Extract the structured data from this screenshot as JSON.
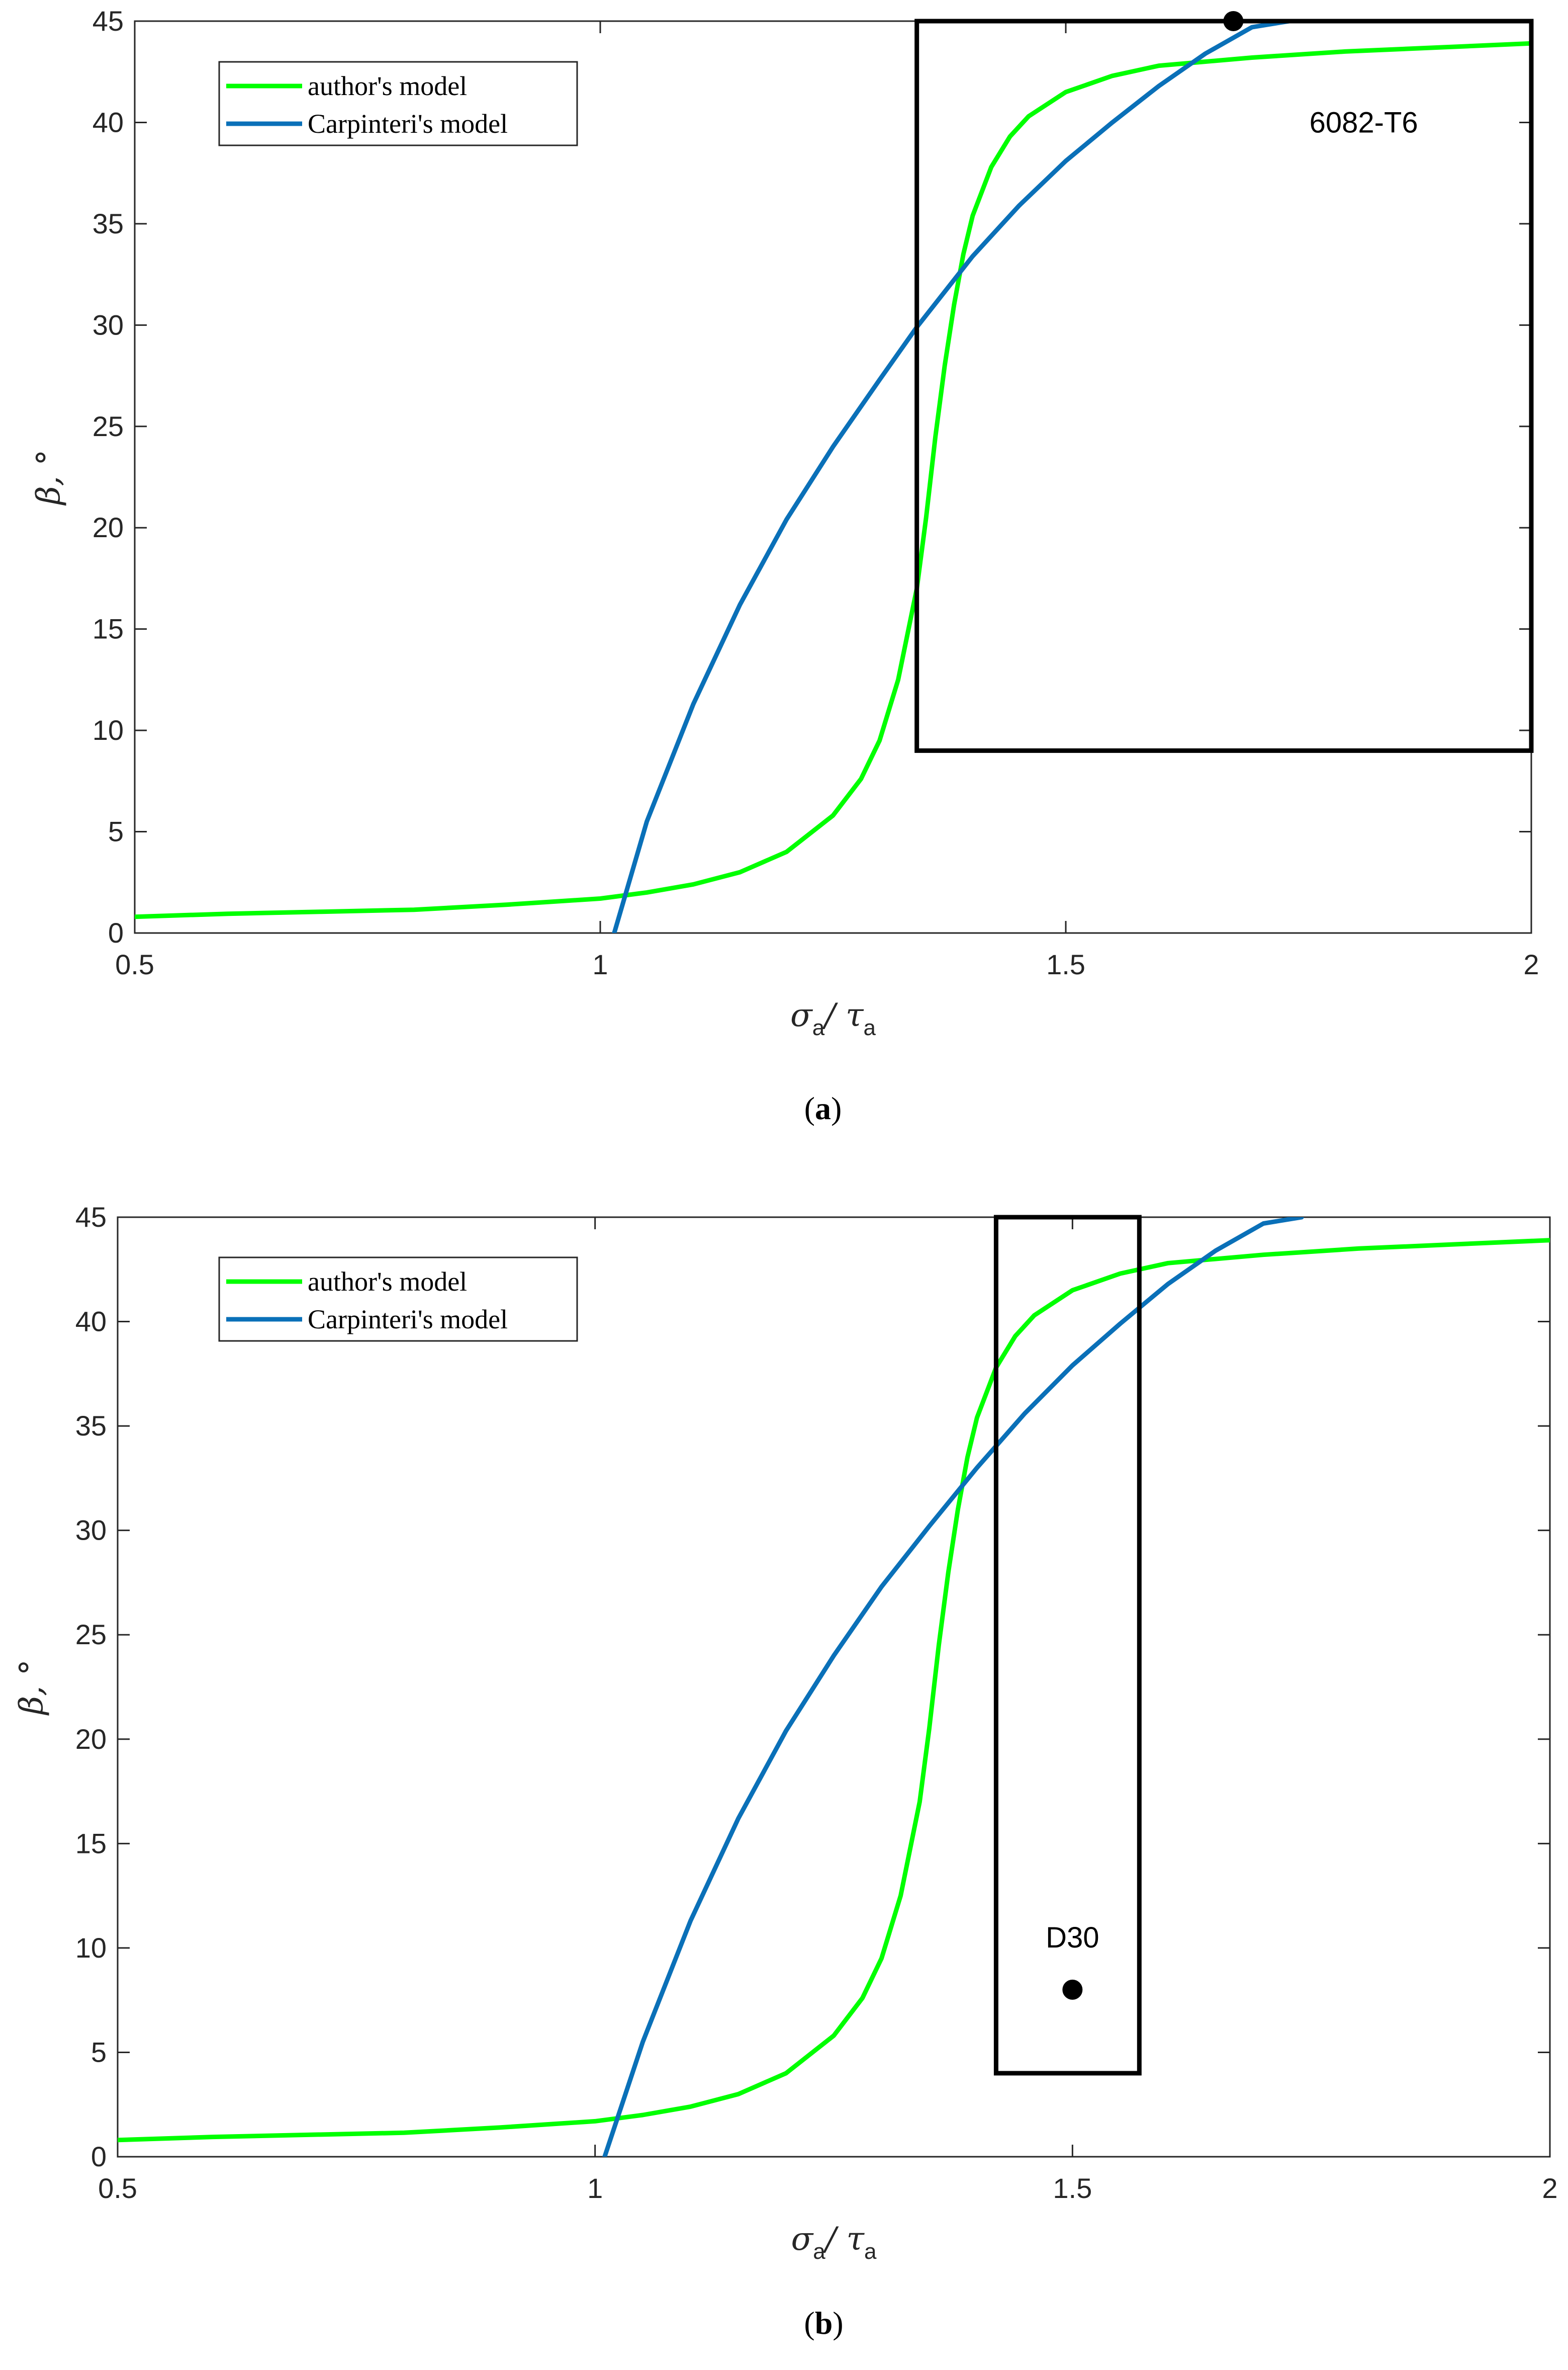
{
  "chart_data": [
    {
      "type": "line",
      "panel": "a",
      "caption_label": "a",
      "xlabel": {
        "main": "σ",
        "sub1": "a",
        "sep": "/ ",
        "main2": "τ",
        "sub2": "a"
      },
      "ylabel": "β, °",
      "xlim": [
        0.5,
        2
      ],
      "ylim": [
        0,
        45
      ],
      "xticks": [
        0.5,
        1,
        1.5,
        2
      ],
      "xtick_labels": [
        "0.5",
        "1",
        "1.5",
        "2"
      ],
      "yticks": [
        0,
        5,
        10,
        15,
        20,
        25,
        30,
        35,
        40,
        45
      ],
      "ytick_labels": [
        "0",
        "5",
        "10",
        "15",
        "20",
        "25",
        "30",
        "35",
        "40",
        "45"
      ],
      "legend_position": "top-left",
      "series": [
        {
          "name": "author's model",
          "color": "#00ff00",
          "x": [
            0.5,
            0.6,
            0.7,
            0.8,
            0.9,
            1.0,
            1.05,
            1.1,
            1.15,
            1.2,
            1.25,
            1.28,
            1.3,
            1.32,
            1.34,
            1.35,
            1.36,
            1.37,
            1.38,
            1.39,
            1.4,
            1.42,
            1.44,
            1.46,
            1.5,
            1.55,
            1.6,
            1.7,
            1.8,
            1.9,
            2.0
          ],
          "y": [
            0.8,
            0.95,
            1.05,
            1.15,
            1.4,
            1.7,
            2.0,
            2.4,
            3.0,
            4.0,
            5.8,
            7.6,
            9.5,
            12.5,
            17.0,
            20.5,
            24.5,
            28.0,
            31.0,
            33.5,
            35.4,
            37.8,
            39.3,
            40.3,
            41.5,
            42.3,
            42.8,
            43.2,
            43.5,
            43.7,
            43.9
          ]
        },
        {
          "name": "Carpinteri's model",
          "color": "#0a70b8",
          "x": [
            1.015,
            1.05,
            1.1,
            1.15,
            1.2,
            1.25,
            1.3,
            1.34,
            1.4,
            1.45,
            1.5,
            1.55,
            1.6,
            1.65,
            1.7,
            1.74
          ],
          "y": [
            0,
            5.5,
            11.3,
            16.2,
            20.4,
            24.0,
            27.3,
            29.9,
            33.4,
            35.9,
            38.1,
            40.0,
            41.8,
            43.4,
            44.7,
            45
          ]
        }
      ],
      "box": {
        "x": [
          1.34,
          2.0
        ],
        "y": [
          9,
          45
        ]
      },
      "points": [
        {
          "x": 1.68,
          "y": 45
        }
      ],
      "annotation": {
        "text": "6082-T6",
        "x": 1.82,
        "y": 40
      }
    },
    {
      "type": "line",
      "panel": "b",
      "caption_label": "b",
      "xlabel": {
        "main": "σ",
        "sub1": "a",
        "sep": "/ ",
        "main2": "τ",
        "sub2": "a"
      },
      "ylabel": "β, °",
      "xlim": [
        0.5,
        2
      ],
      "ylim": [
        0,
        45
      ],
      "xticks": [
        0.5,
        1,
        1.5,
        2
      ],
      "xtick_labels": [
        "0.5",
        "1",
        "1.5",
        "2"
      ],
      "yticks": [
        0,
        5,
        10,
        15,
        20,
        25,
        30,
        35,
        40,
        45
      ],
      "ytick_labels": [
        "0",
        "5",
        "10",
        "15",
        "20",
        "25",
        "30",
        "35",
        "40",
        "45"
      ],
      "legend_position": "top-left",
      "series": [
        {
          "name": "author's model",
          "color": "#00ff00",
          "x": [
            0.5,
            0.6,
            0.7,
            0.8,
            0.9,
            1.0,
            1.05,
            1.1,
            1.15,
            1.2,
            1.25,
            1.28,
            1.3,
            1.32,
            1.34,
            1.35,
            1.36,
            1.37,
            1.38,
            1.39,
            1.4,
            1.42,
            1.44,
            1.46,
            1.5,
            1.55,
            1.6,
            1.7,
            1.8,
            1.9,
            2.0
          ],
          "y": [
            0.8,
            0.95,
            1.05,
            1.15,
            1.4,
            1.7,
            2.0,
            2.4,
            3.0,
            4.0,
            5.8,
            7.6,
            9.5,
            12.5,
            17.0,
            20.5,
            24.5,
            28.0,
            31.0,
            33.5,
            35.4,
            37.8,
            39.3,
            40.3,
            41.5,
            42.3,
            42.8,
            43.2,
            43.5,
            43.7,
            43.9
          ]
        },
        {
          "name": "Carpinteri's model",
          "color": "#0a70b8",
          "x": [
            1.01,
            1.05,
            1.1,
            1.15,
            1.2,
            1.25,
            1.3,
            1.35,
            1.4,
            1.45,
            1.5,
            1.55,
            1.6,
            1.65,
            1.7,
            1.74
          ],
          "y": [
            0,
            5.5,
            11.3,
            16.2,
            20.4,
            24.0,
            27.3,
            30.2,
            33.0,
            35.6,
            37.9,
            39.9,
            41.8,
            43.4,
            44.7,
            45
          ]
        }
      ],
      "box": {
        "x": [
          1.42,
          1.57
        ],
        "y": [
          4,
          45
        ]
      },
      "points": [
        {
          "x": 1.5,
          "y": 8
        }
      ],
      "annotation": {
        "text": "D30",
        "x": 1.5,
        "y": 10.5
      }
    }
  ]
}
